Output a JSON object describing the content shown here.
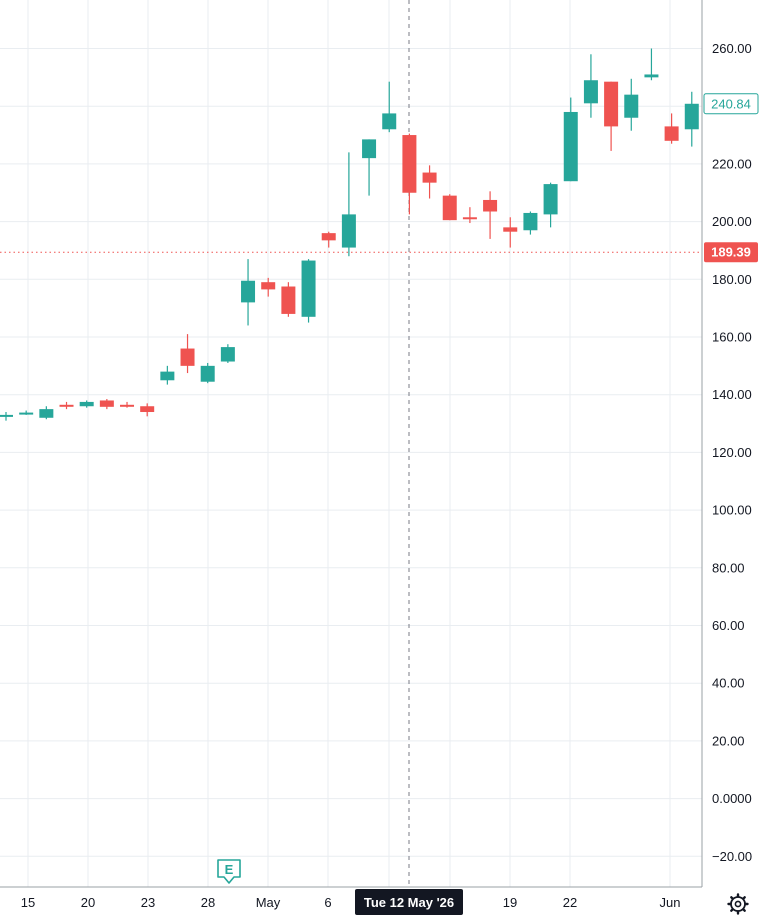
{
  "colors": {
    "up": "#26a69a",
    "down": "#ef5350",
    "grid": "#e9edf1",
    "axis_line": "#9aa0a6",
    "text": "#131722",
    "crosshair": "#787b86",
    "crosshair_label_bg": "#131722",
    "crosshair_label_text": "#ffffff",
    "earnings_marker": "#26a69a"
  },
  "price_axis": {
    "ticks": [
      "260.00",
      "240.00",
      "220.00",
      "200.00",
      "180.00",
      "160.00",
      "140.00",
      "120.00",
      "100.00",
      "80.00",
      "60.00",
      "40.00",
      "20.00",
      "0.0000",
      "−20.00"
    ],
    "last_price_label": "240.84",
    "crosshair_price_label": "189.39"
  },
  "time_axis": {
    "ticks": [
      "15",
      "20",
      "23",
      "28",
      "May",
      "6",
      "19",
      "22",
      "Jun"
    ],
    "crosshair_date_label": "Tue 12 May '26"
  },
  "earnings_marker": {
    "label": "E",
    "icon": "earnings-icon"
  },
  "settings_icon": "gear-icon",
  "chart_data": {
    "type": "candlestick",
    "ylim": [
      -25,
      270
    ],
    "grid": true,
    "y_ticks": [
      260,
      240,
      220,
      200,
      180,
      160,
      140,
      120,
      100,
      80,
      60,
      40,
      20,
      0,
      -20
    ],
    "last_price": 240.84,
    "crosshair": {
      "price": 189.39,
      "date": "Tue 12 May '26"
    },
    "candles": [
      {
        "o": 132.5,
        "h": 134.0,
        "l": 131.0,
        "c": 133.0
      },
      {
        "o": 133.5,
        "h": 134.5,
        "l": 133.0,
        "c": 133.8
      },
      {
        "o": 132.0,
        "h": 136.0,
        "l": 131.5,
        "c": 135.0
      },
      {
        "o": 136.5,
        "h": 137.5,
        "l": 135.0,
        "c": 136.0
      },
      {
        "o": 136.0,
        "h": 138.0,
        "l": 135.5,
        "c": 137.5
      },
      {
        "o": 138.0,
        "h": 138.5,
        "l": 135.0,
        "c": 135.8
      },
      {
        "o": 136.5,
        "h": 137.5,
        "l": 135.5,
        "c": 136.0
      },
      {
        "o": 136.0,
        "h": 137.0,
        "l": 132.5,
        "c": 134.0
      },
      {
        "o": 145.0,
        "h": 150.0,
        "l": 143.5,
        "c": 148.0
      },
      {
        "o": 156.0,
        "h": 161.0,
        "l": 147.5,
        "c": 150.0
      },
      {
        "o": 144.5,
        "h": 151.0,
        "l": 144.0,
        "c": 150.0
      },
      {
        "o": 151.5,
        "h": 157.5,
        "l": 151.0,
        "c": 156.5
      },
      {
        "o": 172.0,
        "h": 187.0,
        "l": 164.0,
        "c": 179.5
      },
      {
        "o": 179.0,
        "h": 180.5,
        "l": 174.0,
        "c": 176.5
      },
      {
        "o": 177.5,
        "h": 179.0,
        "l": 167.0,
        "c": 168.0
      },
      {
        "o": 167.0,
        "h": 187.0,
        "l": 165.0,
        "c": 186.5
      },
      {
        "o": 196.0,
        "h": 196.5,
        "l": 191.0,
        "c": 193.5
      },
      {
        "o": 191.0,
        "h": 224.0,
        "l": 188.0,
        "c": 202.5
      },
      {
        "o": 222.0,
        "h": 228.5,
        "l": 209.0,
        "c": 228.5
      },
      {
        "o": 232.0,
        "h": 248.5,
        "l": 231.0,
        "c": 237.5
      },
      {
        "o": 230.0,
        "h": 230.5,
        "l": 202.5,
        "c": 210.0
      },
      {
        "o": 217.0,
        "h": 219.5,
        "l": 208.0,
        "c": 213.5
      },
      {
        "o": 209.0,
        "h": 209.5,
        "l": 200.5,
        "c": 200.5
      },
      {
        "o": 201.5,
        "h": 205.0,
        "l": 199.5,
        "c": 201.0
      },
      {
        "o": 207.5,
        "h": 210.5,
        "l": 194.0,
        "c": 203.5
      },
      {
        "o": 198.0,
        "h": 201.5,
        "l": 191.0,
        "c": 196.5
      },
      {
        "o": 197.0,
        "h": 203.5,
        "l": 195.5,
        "c": 203.0
      },
      {
        "o": 202.5,
        "h": 213.5,
        "l": 198.0,
        "c": 213.0
      },
      {
        "o": 214.0,
        "h": 243.0,
        "l": 214.0,
        "c": 238.0
      },
      {
        "o": 241.0,
        "h": 258.0,
        "l": 236.0,
        "c": 249.0
      },
      {
        "o": 248.5,
        "h": 248.5,
        "l": 224.5,
        "c": 233.0
      },
      {
        "o": 236.0,
        "h": 249.5,
        "l": 231.5,
        "c": 244.0
      },
      {
        "o": 250.0,
        "h": 260.0,
        "l": 249.0,
        "c": 251.0
      },
      {
        "o": 233.0,
        "h": 237.5,
        "l": 227.0,
        "c": 228.0
      },
      {
        "o": 232.0,
        "h": 245.0,
        "l": 226.0,
        "c": 240.84
      }
    ]
  }
}
